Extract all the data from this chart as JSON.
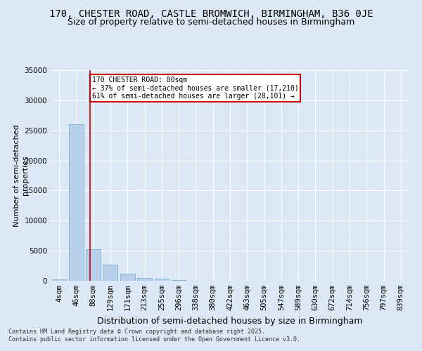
{
  "title1": "170, CHESTER ROAD, CASTLE BROMWICH, BIRMINGHAM, B36 0JE",
  "title2": "Size of property relative to semi-detached houses in Birmingham",
  "xlabel": "Distribution of semi-detached houses by size in Birmingham",
  "ylabel": "Number of semi-detached\nproperties",
  "categories": [
    "4sqm",
    "46sqm",
    "88sqm",
    "129sqm",
    "171sqm",
    "213sqm",
    "255sqm",
    "296sqm",
    "338sqm",
    "380sqm",
    "422sqm",
    "463sqm",
    "505sqm",
    "547sqm",
    "589sqm",
    "630sqm",
    "672sqm",
    "714sqm",
    "756sqm",
    "797sqm",
    "839sqm"
  ],
  "values": [
    200,
    26000,
    5200,
    2700,
    1200,
    500,
    300,
    100,
    0,
    0,
    0,
    0,
    0,
    0,
    0,
    0,
    0,
    0,
    0,
    0,
    0
  ],
  "bar_color": "#b8d0ea",
  "bar_edge_color": "#7aafd4",
  "property_line_x": 1.82,
  "annotation_text": "170 CHESTER ROAD: 80sqm\n← 37% of semi-detached houses are smaller (17,210)\n61% of semi-detached houses are larger (28,101) →",
  "annotation_box_color": "#ffffff",
  "annotation_box_edge_color": "#cc0000",
  "vline_color": "#cc0000",
  "ylim": [
    0,
    35000
  ],
  "yticks": [
    0,
    5000,
    10000,
    15000,
    20000,
    25000,
    30000,
    35000
  ],
  "background_color": "#dce8f5",
  "plot_bg_color": "#dce8f5",
  "footer": "Contains HM Land Registry data © Crown copyright and database right 2025.\nContains public sector information licensed under the Open Government Licence v3.0.",
  "title1_fontsize": 10,
  "title2_fontsize": 9,
  "axis_fontsize": 8,
  "tick_fontsize": 7.5,
  "footer_fontsize": 6
}
